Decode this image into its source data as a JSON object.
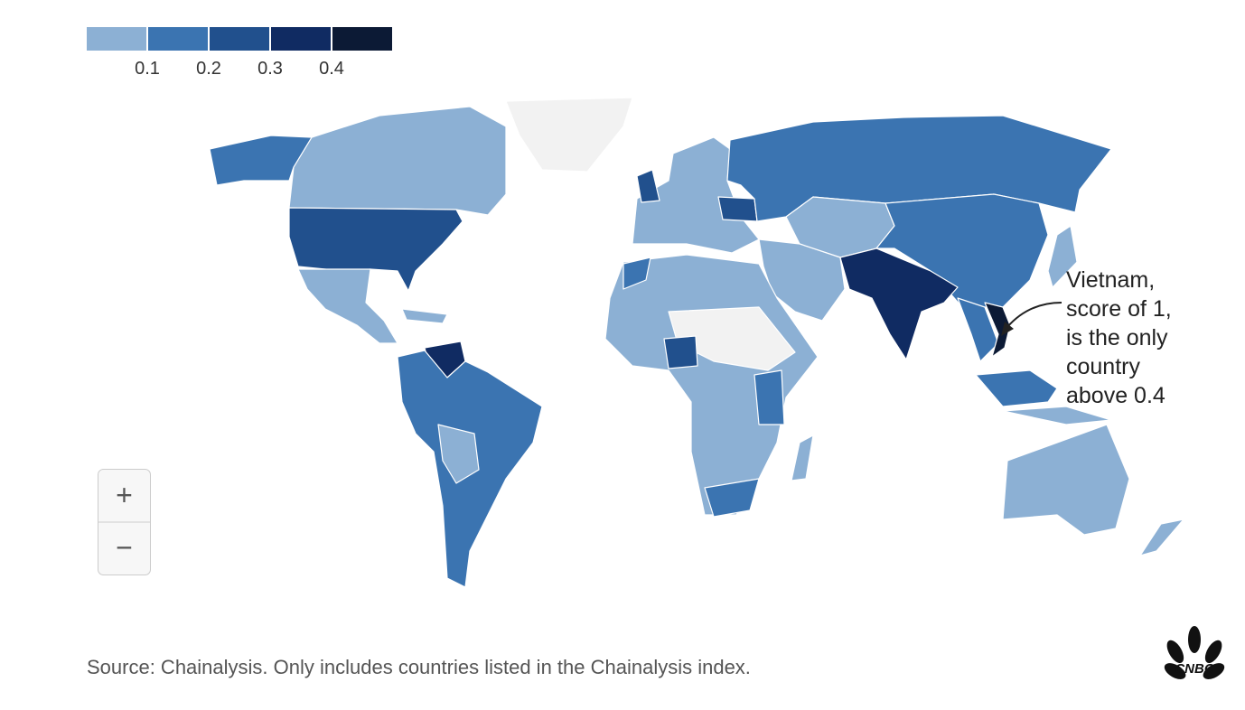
{
  "legend": {
    "colors": [
      "#8cb0d4",
      "#3b74b1",
      "#21508d",
      "#102b62",
      "#0c1a35"
    ],
    "ticks": [
      0.1,
      0.2,
      0.3,
      0.4
    ]
  },
  "annotation": {
    "lines": [
      "Vietnam,",
      "score of 1,",
      "is the only",
      "country",
      "above 0.4"
    ]
  },
  "zoom": {
    "in": "+",
    "out": "−"
  },
  "source": "Source: Chainalysis. Only includes countries listed in the Chainalysis index.",
  "logo": "CNBC"
}
